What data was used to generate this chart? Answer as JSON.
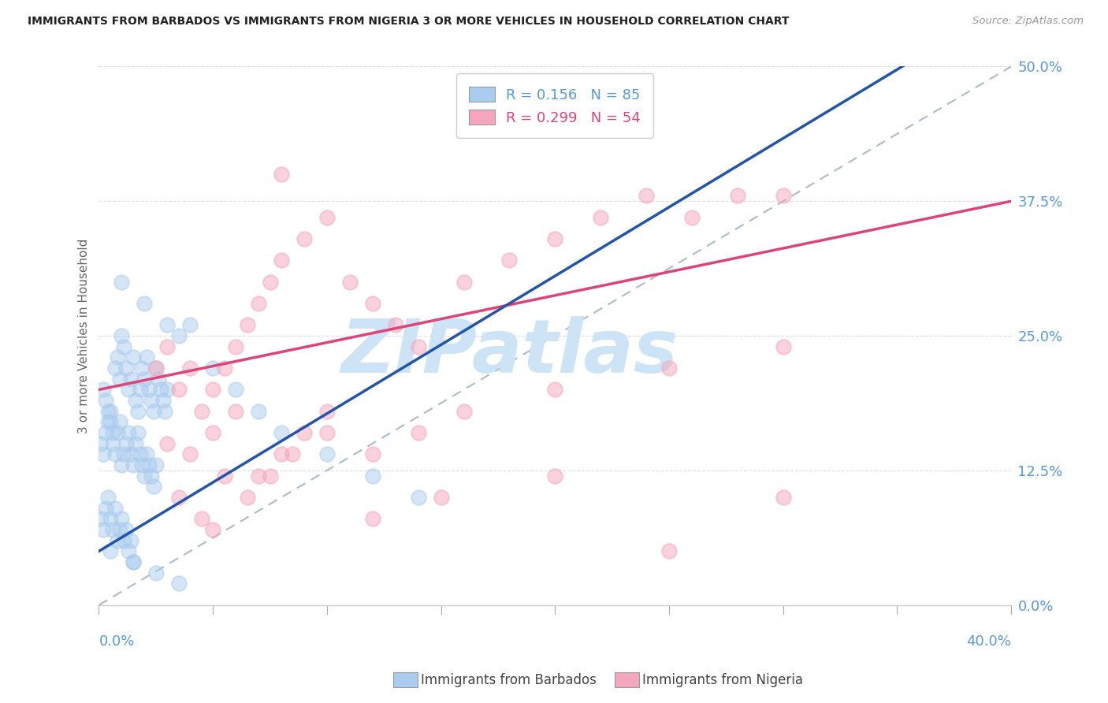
{
  "title": "IMMIGRANTS FROM BARBADOS VS IMMIGRANTS FROM NIGERIA 3 OR MORE VEHICLES IN HOUSEHOLD CORRELATION CHART",
  "source": "Source: ZipAtlas.com",
  "ylabel": "3 or more Vehicles in Household",
  "xlim": [
    0.0,
    40.0
  ],
  "ylim": [
    0.0,
    50.0
  ],
  "ytick_vals": [
    0.0,
    12.5,
    25.0,
    37.5,
    50.0
  ],
  "ytick_labels": [
    "0.0%",
    "12.5%",
    "25.0%",
    "37.5%",
    "50.0%"
  ],
  "xtick_left": "0.0%",
  "xtick_right": "40.0%",
  "barbados_R": 0.156,
  "barbados_N": 85,
  "nigeria_R": 0.299,
  "nigeria_N": 54,
  "color_barbados_fill": "#aaccee",
  "color_nigeria_fill": "#f4a6bc",
  "color_barbados_line": "#2255aa",
  "color_nigeria_line": "#dd4477",
  "color_axis_text": "#5599dd",
  "watermark_text": "ZIPatlas",
  "watermark_color": "#cce4f5",
  "grid_color": "#dddddd",
  "legend_edge_color": "#cccccc",
  "n_xtick_lines": 9,
  "barbados_x": [
    0.2,
    0.3,
    0.4,
    0.5,
    0.6,
    0.7,
    0.8,
    0.9,
    1.0,
    1.1,
    1.2,
    1.3,
    1.4,
    1.5,
    1.6,
    1.7,
    1.8,
    1.9,
    2.0,
    2.1,
    2.2,
    2.3,
    2.4,
    2.5,
    2.6,
    2.7,
    2.8,
    2.9,
    3.0,
    0.1,
    0.2,
    0.3,
    0.4,
    0.5,
    0.6,
    0.7,
    0.8,
    0.9,
    1.0,
    1.1,
    1.2,
    1.3,
    1.4,
    1.5,
    1.6,
    1.7,
    1.8,
    1.9,
    2.0,
    2.1,
    2.2,
    2.3,
    2.4,
    2.5,
    0.1,
    0.2,
    0.3,
    0.4,
    0.5,
    0.6,
    0.7,
    0.8,
    0.9,
    1.0,
    1.1,
    1.2,
    1.3,
    1.4,
    1.5,
    3.5,
    4.0,
    5.0,
    6.0,
    7.0,
    8.0,
    10.0,
    12.0,
    14.0,
    1.0,
    2.0,
    3.0,
    0.5,
    1.5,
    2.5,
    3.5
  ],
  "barbados_y": [
    20.0,
    19.0,
    18.0,
    17.0,
    16.0,
    22.0,
    23.0,
    21.0,
    25.0,
    24.0,
    22.0,
    20.0,
    21.0,
    23.0,
    19.0,
    18.0,
    20.0,
    22.0,
    21.0,
    23.0,
    20.0,
    19.0,
    18.0,
    22.0,
    21.0,
    20.0,
    19.0,
    18.0,
    20.0,
    15.0,
    14.0,
    16.0,
    17.0,
    18.0,
    15.0,
    14.0,
    16.0,
    17.0,
    13.0,
    14.0,
    15.0,
    16.0,
    14.0,
    13.0,
    15.0,
    16.0,
    14.0,
    13.0,
    12.0,
    14.0,
    13.0,
    12.0,
    11.0,
    13.0,
    8.0,
    7.0,
    9.0,
    10.0,
    8.0,
    7.0,
    9.0,
    6.0,
    7.0,
    8.0,
    6.0,
    7.0,
    5.0,
    6.0,
    4.0,
    25.0,
    26.0,
    22.0,
    20.0,
    18.0,
    16.0,
    14.0,
    12.0,
    10.0,
    30.0,
    28.0,
    26.0,
    5.0,
    4.0,
    3.0,
    2.0
  ],
  "nigeria_x": [
    2.5,
    3.0,
    3.5,
    4.0,
    4.5,
    5.0,
    5.5,
    6.0,
    6.5,
    7.0,
    7.5,
    8.0,
    9.0,
    10.0,
    11.0,
    12.0,
    13.0,
    14.0,
    16.0,
    18.0,
    20.0,
    22.0,
    24.0,
    26.0,
    28.0,
    30.0,
    3.0,
    4.0,
    5.0,
    6.0,
    7.0,
    8.0,
    9.0,
    10.0,
    12.0,
    14.0,
    16.0,
    20.0,
    25.0,
    30.0,
    3.5,
    4.5,
    5.5,
    6.5,
    7.5,
    8.5,
    10.0,
    12.0,
    15.0,
    20.0,
    25.0,
    30.0,
    5.0,
    8.0
  ],
  "nigeria_y": [
    22.0,
    24.0,
    20.0,
    22.0,
    18.0,
    20.0,
    22.0,
    24.0,
    26.0,
    28.0,
    30.0,
    32.0,
    34.0,
    36.0,
    30.0,
    28.0,
    26.0,
    24.0,
    30.0,
    32.0,
    34.0,
    36.0,
    38.0,
    36.0,
    38.0,
    38.0,
    15.0,
    14.0,
    16.0,
    18.0,
    12.0,
    14.0,
    16.0,
    18.0,
    14.0,
    16.0,
    18.0,
    20.0,
    22.0,
    24.0,
    10.0,
    8.0,
    12.0,
    10.0,
    12.0,
    14.0,
    16.0,
    8.0,
    10.0,
    12.0,
    5.0,
    10.0,
    7.0,
    40.0
  ]
}
